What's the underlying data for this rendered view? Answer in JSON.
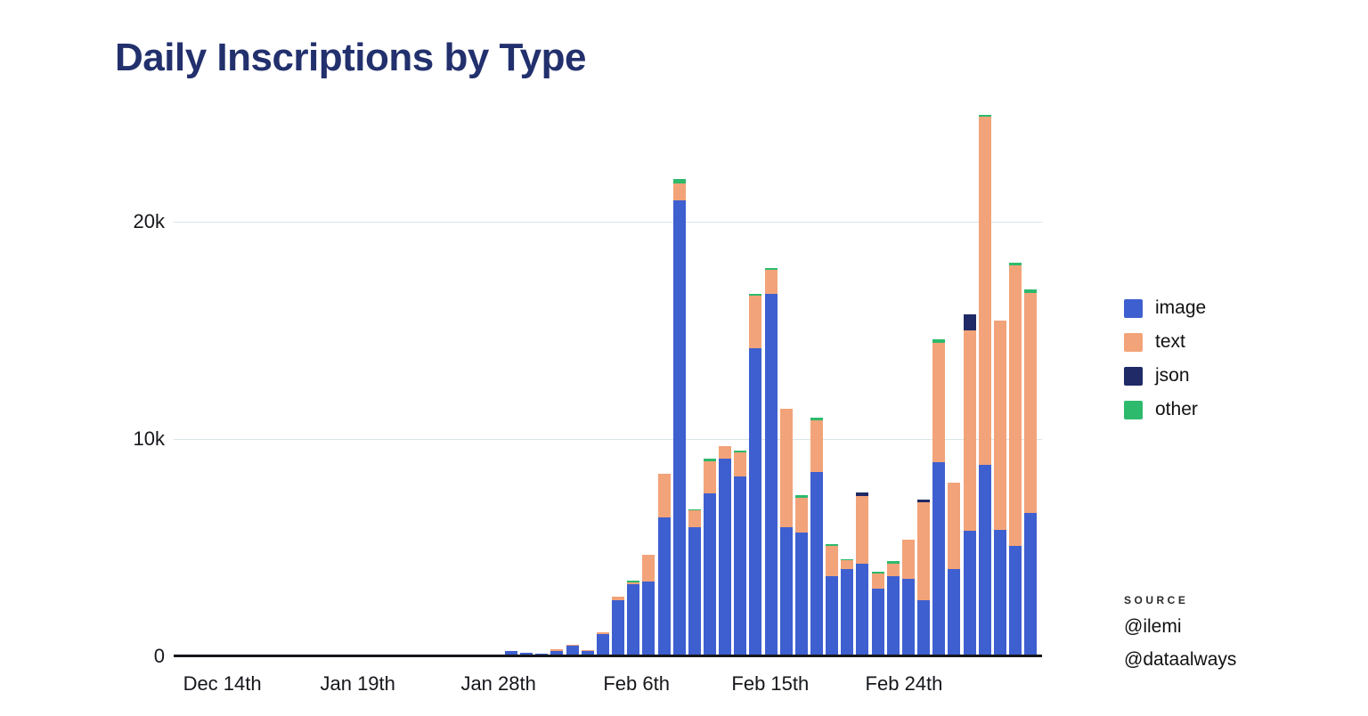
{
  "title": "Daily Inscriptions by Type",
  "title_color": "#22306d",
  "legend": {
    "items": [
      {
        "label": "image",
        "color": "#3e5fd0"
      },
      {
        "label": "text",
        "color": "#f2a379"
      },
      {
        "label": "json",
        "color": "#1f2a66"
      },
      {
        "label": "other",
        "color": "#2eba6d"
      }
    ]
  },
  "source": {
    "heading": "SOURCE",
    "lines": [
      "@ilemi",
      "@dataalways"
    ]
  },
  "chart_data": {
    "type": "bar",
    "stacked": true,
    "title": "Daily Inscriptions by Type",
    "xlabel": "",
    "ylabel": "",
    "ylim": [
      0,
      25000
    ],
    "grid": "horizontal",
    "legend_position": "right",
    "y_ticks": [
      {
        "label": "20k",
        "value": 20000
      },
      {
        "label": "10k",
        "value": 10000
      },
      {
        "label": "0",
        "value": 0
      }
    ],
    "x_ticks": [
      {
        "label": "Dec 14th",
        "pos": 0.056
      },
      {
        "label": "Jan 19th",
        "pos": 0.212
      },
      {
        "label": "Jan 28th",
        "pos": 0.374
      },
      {
        "label": "Feb 6th",
        "pos": 0.533
      },
      {
        "label": "Feb 15th",
        "pos": 0.687
      },
      {
        "label": "Feb 24th",
        "pos": 0.841
      }
    ],
    "series_names": [
      "image",
      "text",
      "json",
      "other"
    ],
    "colors": {
      "image": "#3e5fd0",
      "text": "#f2a379",
      "json": "#1f2a66",
      "other": "#2eba6d"
    },
    "bars": [
      {
        "image": 150,
        "text": 0,
        "json": 0,
        "other": 0
      },
      {
        "image": 80,
        "text": 0,
        "json": 0,
        "other": 0
      },
      {
        "image": 60,
        "text": 0,
        "json": 0,
        "other": 0
      },
      {
        "image": 170,
        "text": 60,
        "json": 0,
        "other": 0
      },
      {
        "image": 400,
        "text": 30,
        "json": 0,
        "other": 0
      },
      {
        "image": 160,
        "text": 30,
        "json": 0,
        "other": 0
      },
      {
        "image": 950,
        "text": 80,
        "json": 0,
        "other": 0
      },
      {
        "image": 2500,
        "text": 150,
        "json": 0,
        "other": 0
      },
      {
        "image": 3250,
        "text": 60,
        "json": 0,
        "other": 90
      },
      {
        "image": 3350,
        "text": 1250,
        "json": 0,
        "other": 0
      },
      {
        "image": 6300,
        "text": 2000,
        "json": 0,
        "other": 0
      },
      {
        "image": 20900,
        "text": 800,
        "json": 0,
        "other": 200
      },
      {
        "image": 5850,
        "text": 800,
        "json": 0,
        "other": 50
      },
      {
        "image": 7400,
        "text": 1500,
        "json": 0,
        "other": 100
      },
      {
        "image": 9000,
        "text": 600,
        "json": 0,
        "other": 0
      },
      {
        "image": 8200,
        "text": 1100,
        "json": 0,
        "other": 100
      },
      {
        "image": 14100,
        "text": 2400,
        "json": 0,
        "other": 100
      },
      {
        "image": 16600,
        "text": 1100,
        "json": 0,
        "other": 100
      },
      {
        "image": 5850,
        "text": 5450,
        "json": 0,
        "other": 0
      },
      {
        "image": 5600,
        "text": 1600,
        "json": 0,
        "other": 150
      },
      {
        "image": 8400,
        "text": 2400,
        "json": 0,
        "other": 100
      },
      {
        "image": 3600,
        "text": 1400,
        "json": 0,
        "other": 100
      },
      {
        "image": 3950,
        "text": 400,
        "json": 0,
        "other": 50
      },
      {
        "image": 4200,
        "text": 3100,
        "json": 150,
        "other": 0
      },
      {
        "image": 3050,
        "text": 700,
        "json": 0,
        "other": 50
      },
      {
        "image": 3600,
        "text": 600,
        "json": 0,
        "other": 100
      },
      {
        "image": 3500,
        "text": 1800,
        "json": 0,
        "other": 0
      },
      {
        "image": 2500,
        "text": 4500,
        "json": 150,
        "other": 0
      },
      {
        "image": 8850,
        "text": 5500,
        "json": 0,
        "other": 150
      },
      {
        "image": 3950,
        "text": 3950,
        "json": 0,
        "other": 0
      },
      {
        "image": 5700,
        "text": 9200,
        "json": 750,
        "other": 0
      },
      {
        "image": 8750,
        "text": 16000,
        "json": 0,
        "other": 100
      },
      {
        "image": 5750,
        "text": 9600,
        "json": 0,
        "other": 0
      },
      {
        "image": 5000,
        "text": 12900,
        "json": 0,
        "other": 150
      },
      {
        "image": 6500,
        "text": 10150,
        "json": 0,
        "other": 150
      }
    ]
  }
}
